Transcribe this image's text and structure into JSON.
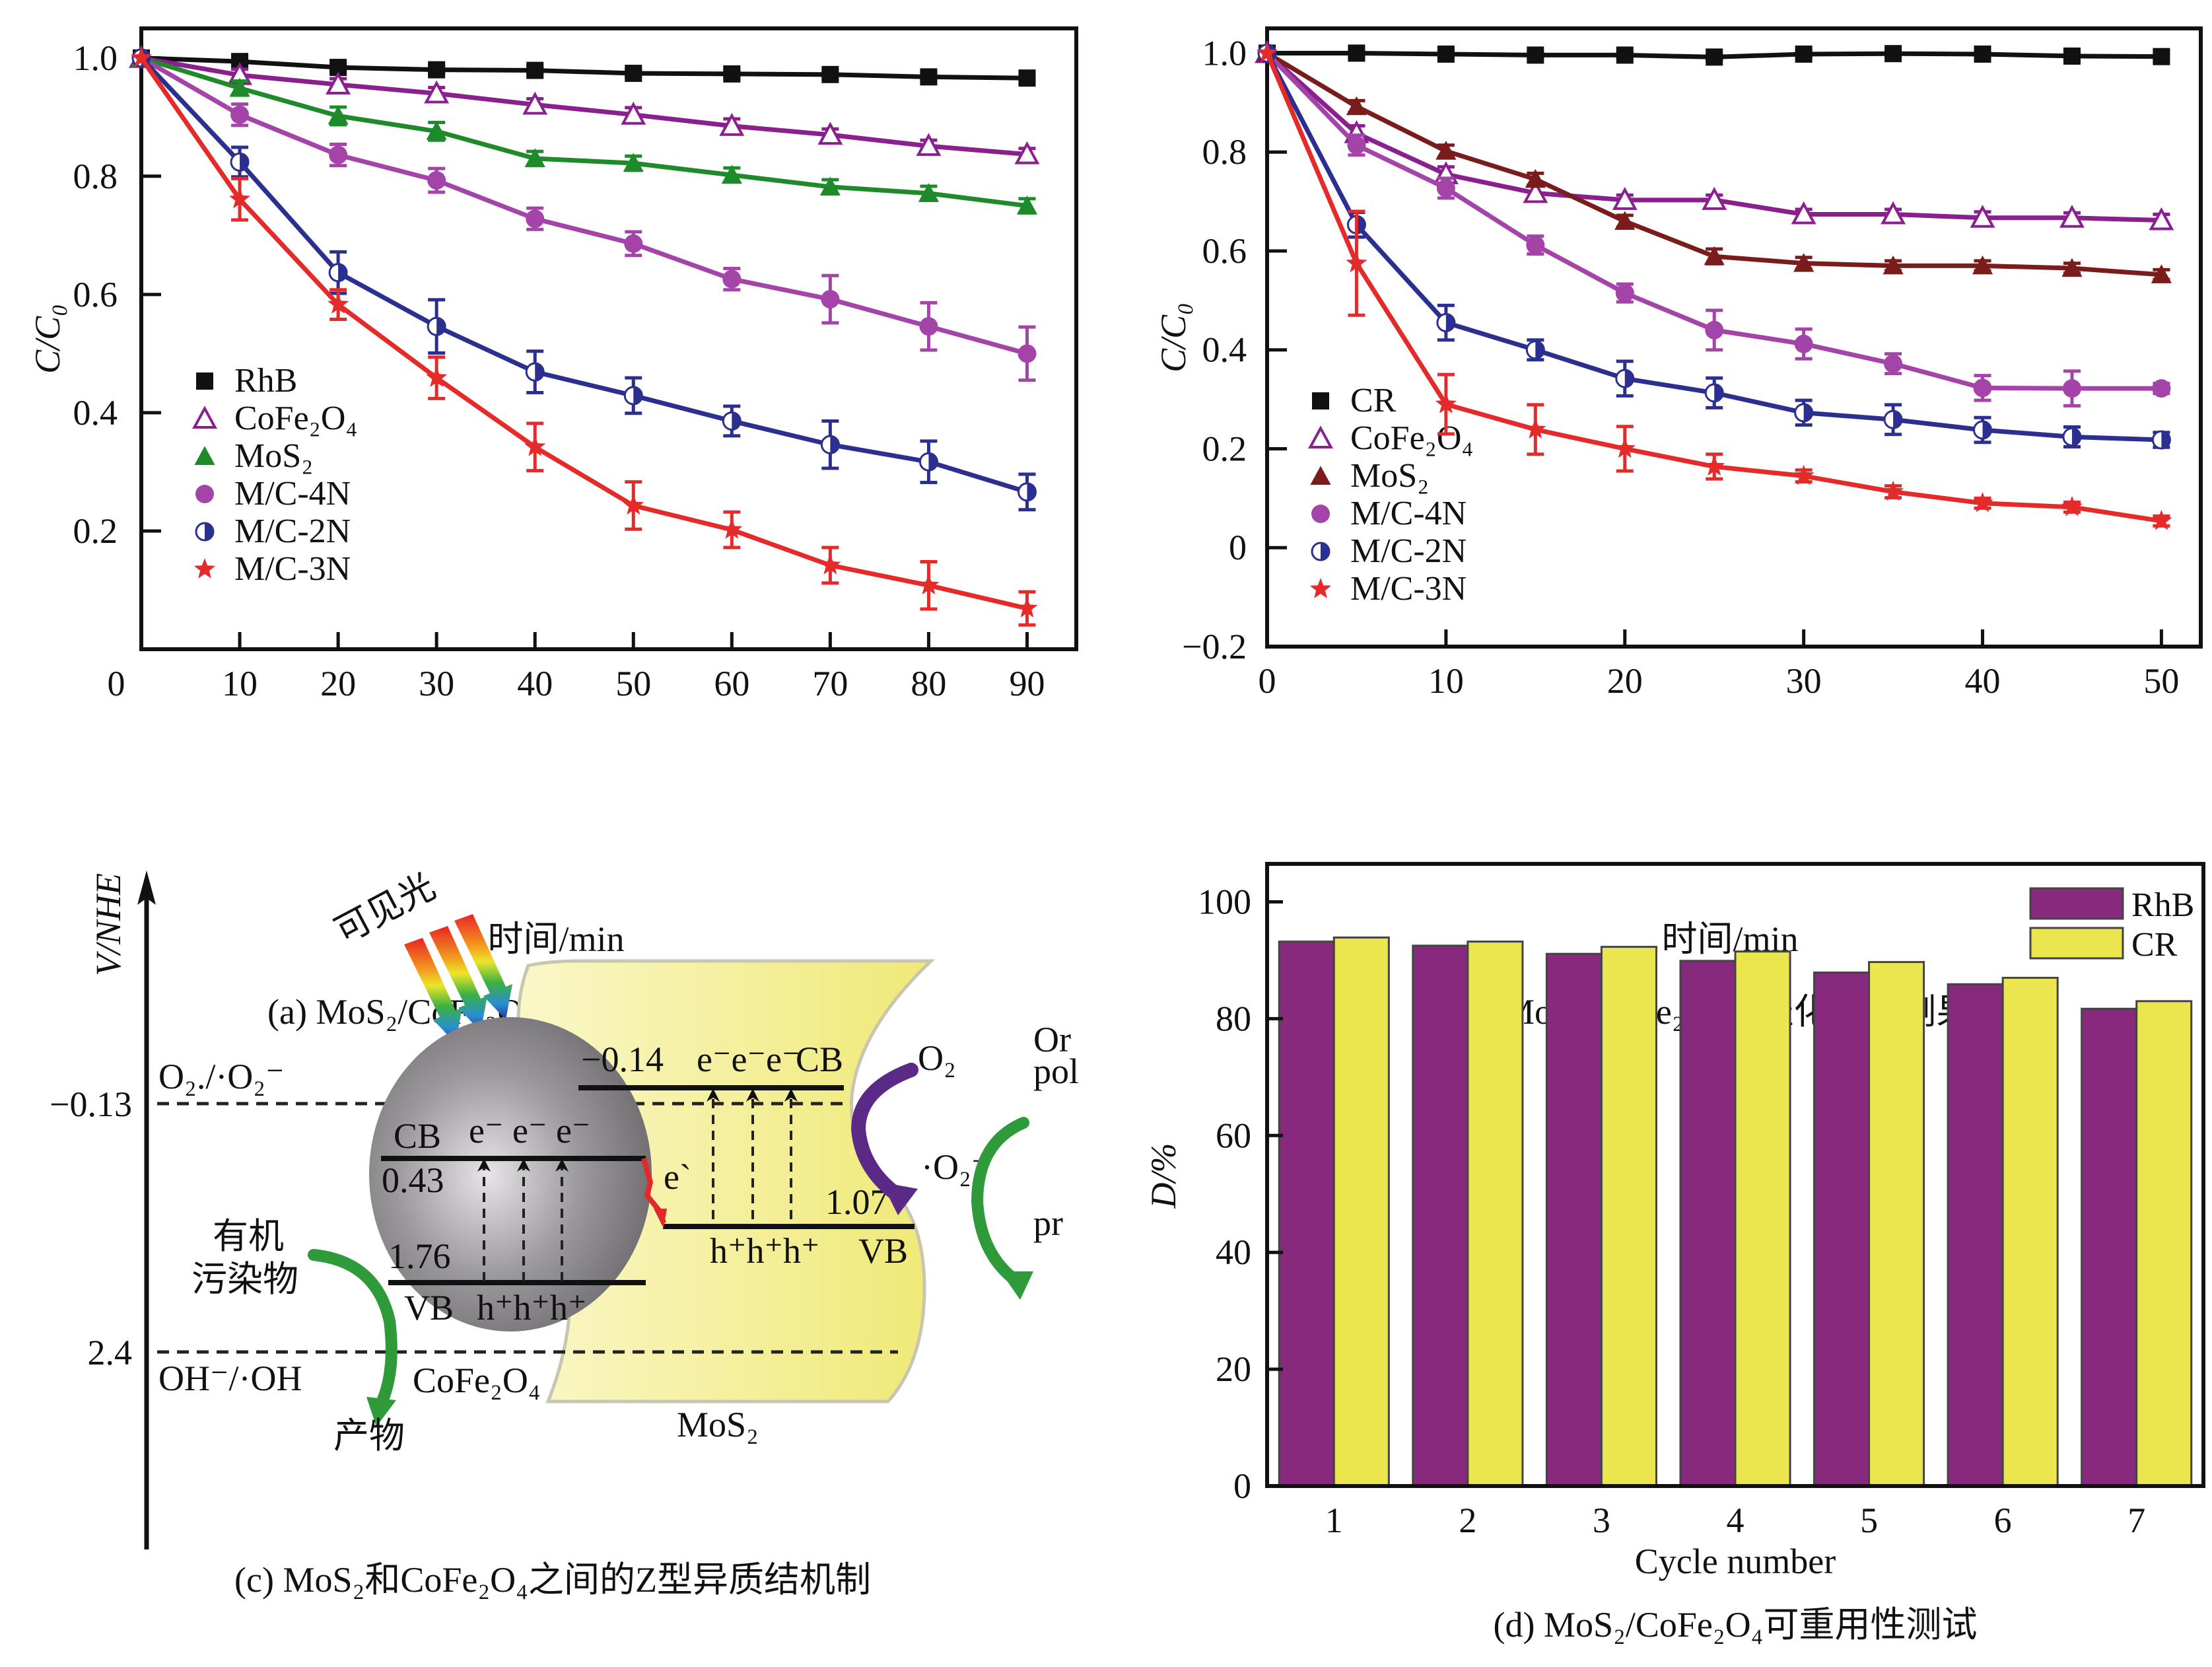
{
  "chart_data": [
    {
      "id": "a",
      "type": "line",
      "caption": "(a) MoS₂/CoFe₂O₄光催化降解罗丹明B",
      "xlabel": "时间/min",
      "ylabel": "C/C₀",
      "xlim": [
        0,
        95
      ],
      "ylim": [
        0,
        1.05
      ],
      "xticks": [
        0,
        10,
        20,
        30,
        40,
        50,
        60,
        70,
        80,
        90
      ],
      "xtick_labels": [
        "0",
        "10",
        "20",
        "30",
        "40",
        "50",
        "60",
        "70",
        "80",
        "90"
      ],
      "yticks": [
        0.2,
        0.4,
        0.6,
        0.8,
        1.0
      ],
      "ytick_labels": [
        "0.2",
        "0.4",
        "0.6",
        "0.8",
        "1.0"
      ],
      "grid": false,
      "legend_position": "lower-left",
      "x": [
        0,
        10,
        20,
        30,
        40,
        50,
        60,
        70,
        80,
        90
      ],
      "series": [
        {
          "name": "RhB",
          "color": "#111111",
          "marker": "square",
          "values": [
            1.0,
            0.994,
            0.984,
            0.98,
            0.979,
            0.974,
            0.973,
            0.972,
            0.968,
            0.966
          ],
          "errors": [
            0,
            0.006,
            0.006,
            0.006,
            0.006,
            0.006,
            0.006,
            0.006,
            0.006,
            0.006
          ]
        },
        {
          "name": "CoFe₂O₄",
          "color": "#8a1f8e",
          "marker": "open-triangle",
          "values": [
            1.0,
            0.971,
            0.955,
            0.94,
            0.921,
            0.904,
            0.885,
            0.87,
            0.851,
            0.837
          ],
          "errors": [
            0,
            0.01,
            0.01,
            0.01,
            0.01,
            0.012,
            0.012,
            0.01,
            0.01,
            0.01
          ]
        },
        {
          "name": "MoS₂",
          "color": "#1f8a2a",
          "marker": "triangle",
          "values": [
            1.0,
            0.949,
            0.902,
            0.876,
            0.83,
            0.822,
            0.802,
            0.782,
            0.771,
            0.75
          ],
          "errors": [
            0,
            0.012,
            0.015,
            0.015,
            0.012,
            0.012,
            0.012,
            0.012,
            0.012,
            0.012
          ]
        },
        {
          "name": "M/C-4N",
          "color": "#a444a8",
          "marker": "circle",
          "values": [
            1.0,
            0.904,
            0.836,
            0.793,
            0.728,
            0.686,
            0.626,
            0.592,
            0.546,
            0.5
          ],
          "errors": [
            0,
            0.018,
            0.018,
            0.02,
            0.018,
            0.02,
            0.018,
            0.04,
            0.04,
            0.045
          ]
        },
        {
          "name": "M/C-2N",
          "color": "#2b2f8f",
          "marker": "half-circle",
          "values": [
            1.0,
            0.824,
            0.637,
            0.546,
            0.469,
            0.429,
            0.386,
            0.346,
            0.317,
            0.266
          ],
          "errors": [
            0,
            0.025,
            0.035,
            0.045,
            0.035,
            0.03,
            0.025,
            0.04,
            0.035,
            0.03
          ]
        },
        {
          "name": "M/C-3N",
          "color": "#e52a2a",
          "marker": "star",
          "values": [
            1.0,
            0.761,
            0.583,
            0.459,
            0.342,
            0.243,
            0.202,
            0.142,
            0.108,
            0.069
          ],
          "errors": [
            0,
            0.035,
            0.025,
            0.035,
            0.04,
            0.04,
            0.03,
            0.03,
            0.04,
            0.028
          ]
        }
      ]
    },
    {
      "id": "b",
      "type": "line",
      "caption": "(b) MoS₂/CoFe₂O₄光催化降解刚果红",
      "xlabel": "时间/min",
      "ylabel": "C/C₀",
      "xlim": [
        0,
        52.2
      ],
      "ylim": [
        -0.2,
        1.05
      ],
      "xticks": [
        0,
        10,
        20,
        30,
        40,
        50
      ],
      "xtick_labels": [
        "0",
        "10",
        "20",
        "30",
        "40",
        "50"
      ],
      "yticks": [
        -0.2,
        0,
        0.2,
        0.4,
        0.6,
        0.8,
        1.0
      ],
      "ytick_labels": [
        "−0.2",
        "0",
        "0.2",
        "0.4",
        "0.6",
        "0.8",
        "1.0"
      ],
      "grid": false,
      "legend_position": "lower-left",
      "x": [
        0,
        5,
        10,
        15,
        20,
        25,
        30,
        35,
        40,
        45,
        50
      ],
      "series": [
        {
          "name": "CR",
          "color": "#111111",
          "marker": "square",
          "values": [
            1.0,
            1.0,
            0.998,
            0.996,
            0.996,
            0.992,
            0.998,
            0.999,
            0.998,
            0.994,
            0.993
          ],
          "errors": [
            0,
            0.005,
            0.005,
            0.005,
            0.005,
            0.005,
            0.005,
            0.005,
            0.005,
            0.005,
            0.005
          ]
        },
        {
          "name": "CoFe₂O₄",
          "color": "#8a1f8e",
          "marker": "open-triangle",
          "values": [
            1.0,
            0.838,
            0.755,
            0.717,
            0.703,
            0.703,
            0.674,
            0.674,
            0.667,
            0.667,
            0.662
          ],
          "errors": [
            0,
            0.015,
            0.015,
            0.015,
            0.01,
            0.01,
            0.01,
            0.01,
            0.012,
            0.01,
            0.012
          ]
        },
        {
          "name": "MoS₂",
          "color": "#7a1c1c",
          "marker": "triangle",
          "values": [
            1.0,
            0.892,
            0.802,
            0.745,
            0.66,
            0.589,
            0.575,
            0.57,
            0.57,
            0.565,
            0.552
          ],
          "errors": [
            0,
            0.012,
            0.012,
            0.012,
            0.012,
            0.015,
            0.012,
            0.01,
            0.01,
            0.01,
            0.01
          ]
        },
        {
          "name": "M/C-4N",
          "color": "#a444a8",
          "marker": "circle",
          "values": [
            1.0,
            0.814,
            0.727,
            0.612,
            0.515,
            0.44,
            0.412,
            0.372,
            0.323,
            0.322,
            0.322
          ],
          "errors": [
            0,
            0.02,
            0.02,
            0.018,
            0.018,
            0.04,
            0.03,
            0.02,
            0.025,
            0.035,
            0.01
          ]
        },
        {
          "name": "M/C-2N",
          "color": "#2b2f8f",
          "marker": "half-circle",
          "values": [
            1.0,
            0.653,
            0.455,
            0.4,
            0.342,
            0.313,
            0.273,
            0.259,
            0.238,
            0.224,
            0.218
          ],
          "errors": [
            0,
            0.025,
            0.035,
            0.02,
            0.035,
            0.03,
            0.025,
            0.03,
            0.025,
            0.02,
            0.015
          ]
        },
        {
          "name": "M/C-3N",
          "color": "#e52a2a",
          "marker": "star",
          "values": [
            1.0,
            0.575,
            0.29,
            0.239,
            0.2,
            0.164,
            0.145,
            0.113,
            0.09,
            0.082,
            0.054
          ],
          "errors": [
            0,
            0.105,
            0.06,
            0.05,
            0.045,
            0.025,
            0.012,
            0.012,
            0.01,
            0.01,
            0.01
          ]
        }
      ]
    },
    {
      "id": "d",
      "type": "bar",
      "caption": "(d) MoS₂/CoFe₂O₄可重用性测试",
      "xlabel": "Cycle number",
      "ylabel": "D/%",
      "ylim": [
        0,
        106.5
      ],
      "yticks": [
        0,
        20,
        40,
        60,
        80,
        100
      ],
      "ytick_labels": [
        "0",
        "20",
        "40",
        "60",
        "80",
        "100"
      ],
      "categories": [
        "1",
        "2",
        "3",
        "4",
        "5",
        "6",
        "7"
      ],
      "grid": false,
      "legend_position": "top-right",
      "series": [
        {
          "name": "RhB",
          "color": "#872a7d",
          "values": [
            93.2,
            92.5,
            91.1,
            89.9,
            87.9,
            85.9,
            81.7
          ]
        },
        {
          "name": "CR",
          "color": "#ebe64d",
          "values": [
            93.9,
            93.2,
            92.3,
            91.5,
            89.7,
            87.0,
            83.0
          ]
        }
      ]
    }
  ],
  "diagram": {
    "caption": "(c) MoS₂和CoFe₂O₄之间的Z型异质结机制",
    "axis_label": "V/NHE",
    "light_label": "可见光",
    "levels": [
      {
        "value": "−0.13",
        "label": "O₂./·O₂⁻"
      },
      {
        "value": "2.4",
        "label": "OH⁻/·OH"
      }
    ],
    "cofe2o4": {
      "name": "CoFe₂O₄",
      "cb_label": "CB",
      "cb_value": "0.43",
      "vb_label": "VB",
      "vb_value": "1.76",
      "electrons": "e⁻ e⁻ e⁻",
      "holes": "h⁺h⁺h⁺"
    },
    "mos2": {
      "name": "MoS₂",
      "cb_label": "CB",
      "cb_value": "−0.14",
      "vb_label": "VB",
      "vb_value": "1.07",
      "electrons": "e⁻e⁻e⁻",
      "holes": "h⁺h⁺h⁺"
    },
    "transfer_label": "e`",
    "o2": "O₂",
    "superoxide": "·O₂⁻",
    "right_pollutant_line1": "Or",
    "right_pollutant_line2": "pol",
    "right_product": "pr",
    "left_pollutant_line1": "有机",
    "left_pollutant_line2": "污染物",
    "left_product": "产物",
    "colors": {
      "mos2_fill": "#f4f09a",
      "sphere": "#8e8c8f",
      "purple_arrow": "#5b2a86",
      "green_arrow": "#2f9a3a",
      "red_arrow": "#e02a2a"
    }
  }
}
